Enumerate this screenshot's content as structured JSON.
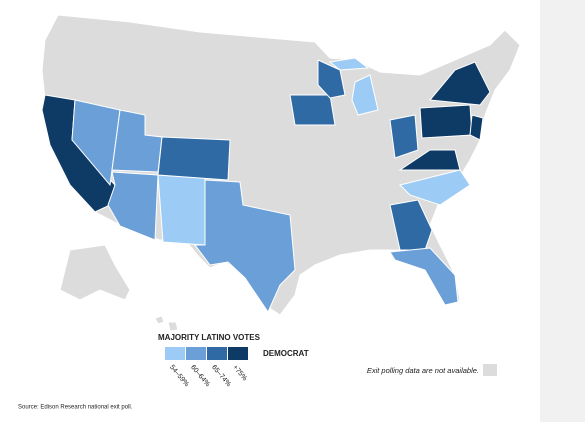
{
  "legend": {
    "title": "MAJORITY LATINO VOTES",
    "party": "DEMOCRAT",
    "items": [
      {
        "label": "54–59%",
        "color": "#9ccbf5"
      },
      {
        "label": "60–64%",
        "color": "#6a9fd8"
      },
      {
        "label": "65–74%",
        "color": "#2f6aa5"
      },
      {
        "label": "+75%",
        "color": "#0e3a66"
      }
    ],
    "no_data": {
      "label": "Exit polling data are not available.",
      "color": "#dcdcdc"
    }
  },
  "source": "Source: Edison Research national exit poll."
}
